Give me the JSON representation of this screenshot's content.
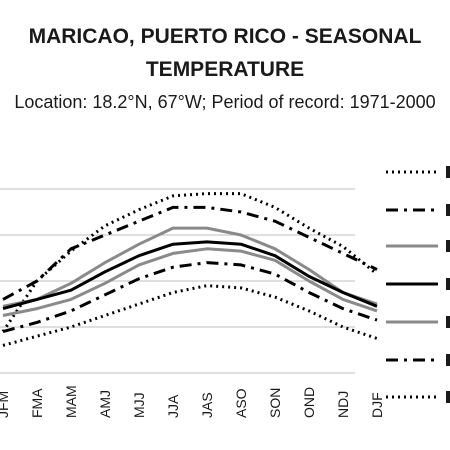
{
  "chart_data": {
    "type": "line",
    "title_line1": "MARICAO, PUERTO RICO - SEASONAL",
    "title_line2": "TEMPERATURE",
    "subtitle": "Location: 18.2°N, 67°W; Period of record: 1971-2000",
    "categories": [
      "JFM",
      "FMA",
      "MAM",
      "AMJ",
      "MJJ",
      "JJA",
      "JAS",
      "ASO",
      "SON",
      "OND",
      "NDJ",
      "DJF"
    ],
    "series": [
      {
        "style": "dotted",
        "color": "#000000",
        "values": [
          13.8,
          16.0,
          17.3,
          18.4,
          19.1,
          19.7,
          19.8,
          19.8,
          19.2,
          18.3,
          17.5,
          16.3
        ]
      },
      {
        "style": "dash-dot",
        "color": "#000000",
        "values": [
          15.2,
          16.0,
          17.4,
          18.0,
          18.6,
          19.2,
          19.2,
          19.0,
          18.6,
          17.9,
          17.2,
          16.5
        ]
      },
      {
        "style": "solid",
        "color": "#8a8a8a",
        "values": [
          14.9,
          15.2,
          15.9,
          16.8,
          17.6,
          18.3,
          18.3,
          18.0,
          17.4,
          16.5,
          15.5,
          15.0
        ]
      },
      {
        "style": "solid",
        "color": "#000000",
        "values": [
          14.8,
          15.2,
          15.6,
          16.4,
          17.1,
          17.6,
          17.7,
          17.6,
          17.1,
          16.2,
          15.5,
          14.9
        ]
      },
      {
        "style": "solid",
        "color": "#8a8a8a",
        "values": [
          14.5,
          14.8,
          15.2,
          15.9,
          16.7,
          17.2,
          17.4,
          17.3,
          16.9,
          16.0,
          15.2,
          14.7
        ]
      },
      {
        "style": "dash-dot",
        "color": "#000000",
        "values": [
          13.8,
          14.2,
          14.7,
          15.4,
          16.1,
          16.6,
          16.8,
          16.7,
          16.3,
          15.5,
          14.8,
          14.3
        ]
      },
      {
        "style": "dotted",
        "color": "#000000",
        "values": [
          13.2,
          13.6,
          14.0,
          14.5,
          15.0,
          15.5,
          15.8,
          15.7,
          15.3,
          14.7,
          14.0,
          13.5
        ]
      }
    ],
    "ylim": [
      10,
      22
    ],
    "yticks": [
      12,
      14,
      16,
      18,
      20
    ],
    "grid": true,
    "legend_position": "right"
  }
}
